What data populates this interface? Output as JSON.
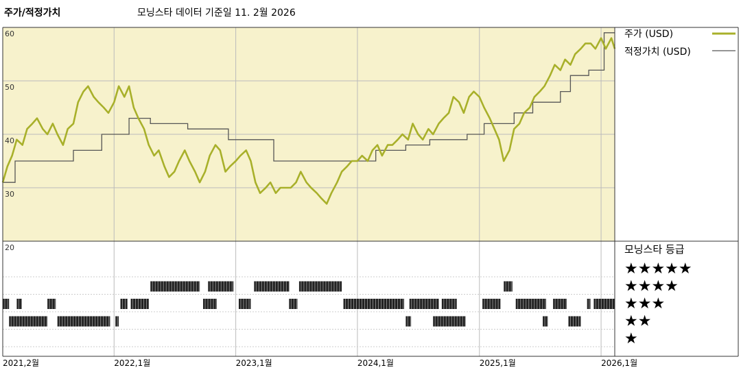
{
  "header": {
    "chart_title": "주가/적정가치",
    "subtitle": "모닝스타 데이터 기준일 11. 2월 2026"
  },
  "legend": {
    "price_label": "주가 (USD)",
    "fair_value_label": "적정가치 (USD)",
    "price_color": "#a8b02a",
    "fair_value_color": "#555555",
    "panel_bg": "#f7f2cc"
  },
  "rating": {
    "title": "모닝스타 등급",
    "levels": [
      {
        "stars": 5,
        "label": "★★★★★"
      },
      {
        "stars": 4,
        "label": "★★★★"
      },
      {
        "stars": 3,
        "label": "★★★"
      },
      {
        "stars": 2,
        "label": "★★"
      },
      {
        "stars": 1,
        "label": "★"
      }
    ],
    "periods": [
      {
        "stars": 3,
        "start": "2021-02-01",
        "end": "2021-02-20"
      },
      {
        "stars": 3,
        "start": "2021-03-15",
        "end": "2021-03-30"
      },
      {
        "stars": 2,
        "start": "2021-02-20",
        "end": "2021-06-15"
      },
      {
        "stars": 3,
        "start": "2021-06-15",
        "end": "2021-07-10"
      },
      {
        "stars": 2,
        "start": "2021-07-15",
        "end": "2021-12-20"
      },
      {
        "stars": 2,
        "start": "2022-01-05",
        "end": "2022-01-15"
      },
      {
        "stars": 3,
        "start": "2022-01-20",
        "end": "2022-02-10"
      },
      {
        "stars": 3,
        "start": "2022-02-20",
        "end": "2022-04-15"
      },
      {
        "stars": 4,
        "start": "2022-04-20",
        "end": "2022-09-15"
      },
      {
        "stars": 3,
        "start": "2022-09-25",
        "end": "2022-11-05"
      },
      {
        "stars": 4,
        "start": "2022-10-10",
        "end": "2022-12-25"
      },
      {
        "stars": 3,
        "start": "2023-01-10",
        "end": "2023-02-15"
      },
      {
        "stars": 4,
        "start": "2023-02-25",
        "end": "2023-06-10"
      },
      {
        "stars": 3,
        "start": "2023-06-10",
        "end": "2023-07-05"
      },
      {
        "stars": 4,
        "start": "2023-07-10",
        "end": "2023-11-15"
      },
      {
        "stars": 3,
        "start": "2023-11-20",
        "end": "2024-05-20"
      },
      {
        "stars": 3,
        "start": "2024-06-05",
        "end": "2024-09-01"
      },
      {
        "stars": 2,
        "start": "2024-05-25",
        "end": "2024-06-10"
      },
      {
        "stars": 3,
        "start": "2024-09-10",
        "end": "2024-10-25"
      },
      {
        "stars": 2,
        "start": "2024-08-15",
        "end": "2024-11-20"
      },
      {
        "stars": 3,
        "start": "2025-01-10",
        "end": "2025-03-05"
      },
      {
        "stars": 4,
        "start": "2025-03-15",
        "end": "2025-04-10"
      },
      {
        "stars": 3,
        "start": "2025-04-20",
        "end": "2025-07-20"
      },
      {
        "stars": 3,
        "start": "2025-08-10",
        "end": "2025-09-20"
      },
      {
        "stars": 2,
        "start": "2025-07-10",
        "end": "2025-07-25"
      },
      {
        "stars": 2,
        "start": "2025-09-25",
        "end": "2025-11-01"
      },
      {
        "stars": 3,
        "start": "2025-11-20",
        "end": "2025-11-30"
      },
      {
        "stars": 3,
        "start": "2025-12-10",
        "end": "2026-02-11"
      }
    ]
  },
  "chart_data": {
    "type": "line",
    "ylim": [
      20,
      60
    ],
    "y_ticks": [
      60,
      50,
      40,
      30,
      20
    ],
    "x_ticks": [
      {
        "date": "2021-02-01",
        "label": "2021,2월"
      },
      {
        "date": "2022-01-01",
        "label": "2022,1월"
      },
      {
        "date": "2023-01-01",
        "label": "2023,1월"
      },
      {
        "date": "2024-01-01",
        "label": "2024,1월"
      },
      {
        "date": "2025-01-01",
        "label": "2025,1월"
      },
      {
        "date": "2026-01-01",
        "label": "2026,1월"
      }
    ],
    "x_range": [
      "2021-02-01",
      "2026-02-11"
    ],
    "series": [
      {
        "name": "주가 (USD)",
        "points": [
          [
            "2021-02-01",
            31
          ],
          [
            "2021-02-15",
            34
          ],
          [
            "2021-03-01",
            36
          ],
          [
            "2021-03-15",
            39
          ],
          [
            "2021-04-01",
            38
          ],
          [
            "2021-04-15",
            41
          ],
          [
            "2021-05-01",
            42
          ],
          [
            "2021-05-15",
            43
          ],
          [
            "2021-06-01",
            41
          ],
          [
            "2021-06-15",
            40
          ],
          [
            "2021-07-01",
            42
          ],
          [
            "2021-07-15",
            40
          ],
          [
            "2021-08-01",
            38
          ],
          [
            "2021-08-15",
            41
          ],
          [
            "2021-09-01",
            42
          ],
          [
            "2021-09-15",
            46
          ],
          [
            "2021-10-01",
            48
          ],
          [
            "2021-10-15",
            49
          ],
          [
            "2021-11-01",
            47
          ],
          [
            "2021-11-15",
            46
          ],
          [
            "2021-12-01",
            45
          ],
          [
            "2021-12-15",
            44
          ],
          [
            "2022-01-01",
            46
          ],
          [
            "2022-01-15",
            49
          ],
          [
            "2022-02-01",
            47
          ],
          [
            "2022-02-15",
            49
          ],
          [
            "2022-03-01",
            45
          ],
          [
            "2022-03-15",
            43
          ],
          [
            "2022-04-01",
            41
          ],
          [
            "2022-04-15",
            38
          ],
          [
            "2022-05-01",
            36
          ],
          [
            "2022-05-15",
            37
          ],
          [
            "2022-06-01",
            34
          ],
          [
            "2022-06-15",
            32
          ],
          [
            "2022-07-01",
            33
          ],
          [
            "2022-07-15",
            35
          ],
          [
            "2022-08-01",
            37
          ],
          [
            "2022-08-15",
            35
          ],
          [
            "2022-09-01",
            33
          ],
          [
            "2022-09-15",
            31
          ],
          [
            "2022-10-01",
            33
          ],
          [
            "2022-10-15",
            36
          ],
          [
            "2022-11-01",
            38
          ],
          [
            "2022-11-15",
            37
          ],
          [
            "2022-12-01",
            33
          ],
          [
            "2022-12-15",
            34
          ],
          [
            "2023-01-01",
            35
          ],
          [
            "2023-01-15",
            36
          ],
          [
            "2023-02-01",
            37
          ],
          [
            "2023-02-15",
            35
          ],
          [
            "2023-03-01",
            31
          ],
          [
            "2023-03-15",
            29
          ],
          [
            "2023-04-01",
            30
          ],
          [
            "2023-04-15",
            31
          ],
          [
            "2023-05-01",
            29
          ],
          [
            "2023-05-15",
            30
          ],
          [
            "2023-06-01",
            30
          ],
          [
            "2023-06-15",
            30
          ],
          [
            "2023-07-01",
            31
          ],
          [
            "2023-07-15",
            33
          ],
          [
            "2023-08-01",
            31
          ],
          [
            "2023-08-15",
            30
          ],
          [
            "2023-09-01",
            29
          ],
          [
            "2023-09-15",
            28
          ],
          [
            "2023-10-01",
            27
          ],
          [
            "2023-10-15",
            29
          ],
          [
            "2023-11-01",
            31
          ],
          [
            "2023-11-15",
            33
          ],
          [
            "2023-12-01",
            34
          ],
          [
            "2023-12-15",
            35
          ],
          [
            "2024-01-01",
            35
          ],
          [
            "2024-01-15",
            36
          ],
          [
            "2024-02-01",
            35
          ],
          [
            "2024-02-15",
            37
          ],
          [
            "2024-03-01",
            38
          ],
          [
            "2024-03-15",
            36
          ],
          [
            "2024-04-01",
            38
          ],
          [
            "2024-04-15",
            38
          ],
          [
            "2024-05-01",
            39
          ],
          [
            "2024-05-15",
            40
          ],
          [
            "2024-06-01",
            39
          ],
          [
            "2024-06-15",
            42
          ],
          [
            "2024-07-01",
            40
          ],
          [
            "2024-07-15",
            39
          ],
          [
            "2024-08-01",
            41
          ],
          [
            "2024-08-15",
            40
          ],
          [
            "2024-09-01",
            42
          ],
          [
            "2024-09-15",
            43
          ],
          [
            "2024-10-01",
            44
          ],
          [
            "2024-10-15",
            47
          ],
          [
            "2024-11-01",
            46
          ],
          [
            "2024-11-15",
            44
          ],
          [
            "2024-12-01",
            47
          ],
          [
            "2024-12-15",
            48
          ],
          [
            "2025-01-01",
            47
          ],
          [
            "2025-01-15",
            45
          ],
          [
            "2025-02-01",
            43
          ],
          [
            "2025-02-15",
            41
          ],
          [
            "2025-03-01",
            39
          ],
          [
            "2025-03-15",
            35
          ],
          [
            "2025-04-01",
            37
          ],
          [
            "2025-04-15",
            41
          ],
          [
            "2025-05-01",
            42
          ],
          [
            "2025-05-15",
            44
          ],
          [
            "2025-06-01",
            45
          ],
          [
            "2025-06-15",
            47
          ],
          [
            "2025-07-01",
            48
          ],
          [
            "2025-07-15",
            49
          ],
          [
            "2025-08-01",
            51
          ],
          [
            "2025-08-15",
            53
          ],
          [
            "2025-09-01",
            52
          ],
          [
            "2025-09-15",
            54
          ],
          [
            "2025-10-01",
            53
          ],
          [
            "2025-10-15",
            55
          ],
          [
            "2025-11-01",
            56
          ],
          [
            "2025-11-15",
            57
          ],
          [
            "2025-12-01",
            57
          ],
          [
            "2025-12-15",
            56
          ],
          [
            "2026-01-01",
            58
          ],
          [
            "2026-01-15",
            56
          ],
          [
            "2026-02-01",
            58
          ],
          [
            "2026-02-11",
            56
          ]
        ]
      },
      {
        "name": "적정가치 (USD)",
        "points": [
          [
            "2021-02-01",
            31
          ],
          [
            "2021-03-10",
            31
          ],
          [
            "2021-03-10",
            35
          ],
          [
            "2021-09-01",
            35
          ],
          [
            "2021-09-01",
            37
          ],
          [
            "2021-11-25",
            37
          ],
          [
            "2021-11-25",
            40
          ],
          [
            "2022-02-15",
            40
          ],
          [
            "2022-02-15",
            43
          ],
          [
            "2022-04-20",
            43
          ],
          [
            "2022-04-20",
            42
          ],
          [
            "2022-08-10",
            42
          ],
          [
            "2022-08-10",
            41
          ],
          [
            "2022-12-10",
            41
          ],
          [
            "2022-12-10",
            39
          ],
          [
            "2023-04-25",
            39
          ],
          [
            "2023-04-25",
            35
          ],
          [
            "2024-02-25",
            35
          ],
          [
            "2024-02-25",
            37
          ],
          [
            "2024-05-25",
            37
          ],
          [
            "2024-05-25",
            38
          ],
          [
            "2024-08-05",
            38
          ],
          [
            "2024-08-05",
            39
          ],
          [
            "2024-11-25",
            39
          ],
          [
            "2024-11-25",
            40
          ],
          [
            "2025-01-15",
            40
          ],
          [
            "2025-01-15",
            42
          ],
          [
            "2025-04-15",
            42
          ],
          [
            "2025-04-15",
            44
          ],
          [
            "2025-06-10",
            44
          ],
          [
            "2025-06-10",
            46
          ],
          [
            "2025-09-01",
            46
          ],
          [
            "2025-09-01",
            48
          ],
          [
            "2025-10-01",
            48
          ],
          [
            "2025-10-01",
            51
          ],
          [
            "2025-11-25",
            51
          ],
          [
            "2025-11-25",
            52
          ],
          [
            "2026-01-10",
            52
          ],
          [
            "2026-01-10",
            59
          ],
          [
            "2026-02-11",
            59
          ]
        ]
      }
    ]
  }
}
